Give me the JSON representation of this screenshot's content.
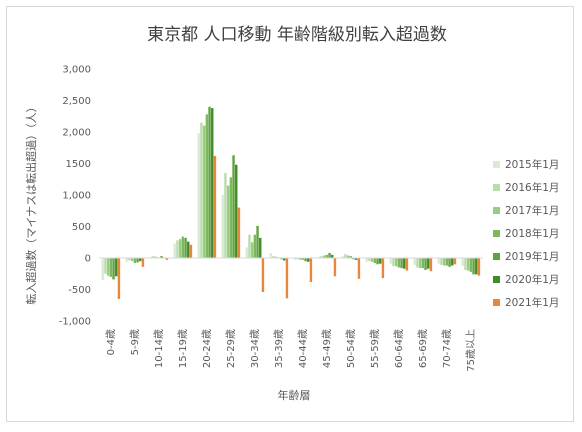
{
  "chart_data": {
    "type": "bar",
    "title": "東京都 人口移動 年齢階級別転入超過数",
    "xlabel": "年齢層",
    "ylabel": "転入超過数（マイナスは転出超過）（人）",
    "ylim": [
      -1000,
      3000
    ],
    "yticks": [
      -1000,
      -500,
      0,
      500,
      1000,
      1500,
      2000,
      2500,
      3000
    ],
    "ytick_labels": [
      "-1,000",
      "-500",
      "0",
      "500",
      "1,000",
      "1500",
      "2,000",
      "2,500",
      "3,000"
    ],
    "categories": [
      "0-4歳",
      "5-9歳",
      "10-14歳",
      "15-19歳",
      "20-24歳",
      "25-29歳",
      "30-34歳",
      "35-39歳",
      "40-44歳",
      "45-49歳",
      "50-54歳",
      "55-59歳",
      "60-64歳",
      "65-69歳",
      "70-74歳",
      "75歳以上"
    ],
    "legend_position": "right",
    "grid": false,
    "series": [
      {
        "name": "2015年1月",
        "color": "#d9ecd1",
        "values": [
          -350,
          -60,
          20,
          230,
          1980,
          1000,
          170,
          80,
          -30,
          20,
          30,
          -60,
          -90,
          -110,
          -90,
          -130
        ]
      },
      {
        "name": "2016年1月",
        "color": "#b9dcac",
        "values": [
          -250,
          -40,
          30,
          280,
          2150,
          1350,
          370,
          30,
          -20,
          30,
          60,
          -50,
          -130,
          -150,
          -110,
          -190
        ]
      },
      {
        "name": "2017年1月",
        "color": "#9bcc86",
        "values": [
          -280,
          -50,
          20,
          300,
          2100,
          1150,
          250,
          20,
          -30,
          40,
          40,
          -60,
          -130,
          -160,
          -120,
          -200
        ]
      },
      {
        "name": "2018年1月",
        "color": "#7bb95c",
        "values": [
          -300,
          -80,
          10,
          340,
          2280,
          1280,
          370,
          10,
          -30,
          50,
          30,
          -80,
          -150,
          -160,
          -120,
          -220
        ]
      },
      {
        "name": "2019年1月",
        "color": "#5ea43c",
        "values": [
          -340,
          -70,
          30,
          320,
          2400,
          1630,
          510,
          -20,
          -50,
          80,
          -20,
          -100,
          -160,
          -190,
          -140,
          -260
        ]
      },
      {
        "name": "2020年1月",
        "color": "#438a2a",
        "values": [
          -290,
          -50,
          10,
          260,
          2380,
          1480,
          320,
          -40,
          -60,
          50,
          -30,
          -90,
          -170,
          -170,
          -120,
          -260
        ]
      },
      {
        "name": "2021年1月",
        "color": "#e6873c",
        "values": [
          -650,
          -140,
          -30,
          210,
          1620,
          800,
          -540,
          -640,
          -380,
          -290,
          -330,
          -320,
          -200,
          -210,
          -100,
          -280
        ]
      }
    ]
  }
}
